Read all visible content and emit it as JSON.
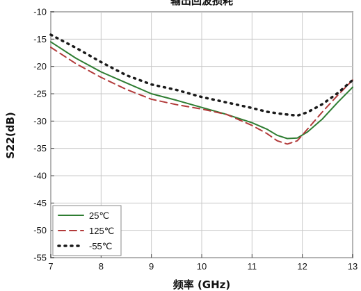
{
  "chart_data": {
    "type": "line",
    "title": "输出回波损耗",
    "xlabel": "频率 (GHz)",
    "ylabel": "S22(dB)",
    "xlim": [
      7,
      13
    ],
    "ylim": [
      -55,
      -10
    ],
    "x_ticks": [
      "7",
      "8",
      "9",
      "10",
      "11",
      "12",
      "13"
    ],
    "y_ticks": [
      "-10",
      "-15",
      "-20",
      "-25",
      "-30",
      "-35",
      "-40",
      "-45",
      "-50",
      "-55"
    ],
    "grid": true,
    "legend_position": "bottom-left",
    "series": [
      {
        "name": "25℃",
        "color": "#2e7d32",
        "style": "solid",
        "points": [
          [
            7,
            -15.5
          ],
          [
            7.5,
            -18.5
          ],
          [
            8,
            -21
          ],
          [
            8.5,
            -23
          ],
          [
            9,
            -25
          ],
          [
            9.5,
            -26.2
          ],
          [
            10,
            -27.5
          ],
          [
            10.5,
            -28.8
          ],
          [
            11,
            -30.3
          ],
          [
            11.3,
            -31.5
          ],
          [
            11.5,
            -32.6
          ],
          [
            11.7,
            -33.2
          ],
          [
            11.9,
            -33.1
          ],
          [
            12.1,
            -32
          ],
          [
            12.4,
            -29.6
          ],
          [
            12.7,
            -26.6
          ],
          [
            13,
            -23.8
          ]
        ]
      },
      {
        "name": "125℃",
        "color": "#b23a3a",
        "style": "dashed",
        "points": [
          [
            7,
            -16.5
          ],
          [
            7.5,
            -19.5
          ],
          [
            8,
            -22
          ],
          [
            8.5,
            -24.2
          ],
          [
            9,
            -26
          ],
          [
            9.5,
            -27
          ],
          [
            10,
            -27.8
          ],
          [
            10.5,
            -28.8
          ],
          [
            11,
            -30.8
          ],
          [
            11.3,
            -32.3
          ],
          [
            11.5,
            -33.6
          ],
          [
            11.7,
            -34.2
          ],
          [
            11.9,
            -33.6
          ],
          [
            12.1,
            -31.5
          ],
          [
            12.4,
            -28.3
          ],
          [
            12.7,
            -25.3
          ],
          [
            13,
            -22.5
          ]
        ]
      },
      {
        "name": "-55℃",
        "color": "#1a1a1a",
        "style": "dotted",
        "points": [
          [
            7,
            -14.2
          ],
          [
            7.5,
            -16.6
          ],
          [
            8,
            -19.2
          ],
          [
            8.5,
            -21.6
          ],
          [
            9,
            -23.3
          ],
          [
            9.5,
            -24.3
          ],
          [
            10,
            -25.6
          ],
          [
            10.5,
            -26.6
          ],
          [
            11,
            -27.6
          ],
          [
            11.3,
            -28.3
          ],
          [
            11.6,
            -28.7
          ],
          [
            11.9,
            -29.0
          ],
          [
            12.1,
            -28.4
          ],
          [
            12.4,
            -26.9
          ],
          [
            12.7,
            -24.9
          ],
          [
            13,
            -22.5
          ]
        ]
      }
    ]
  }
}
